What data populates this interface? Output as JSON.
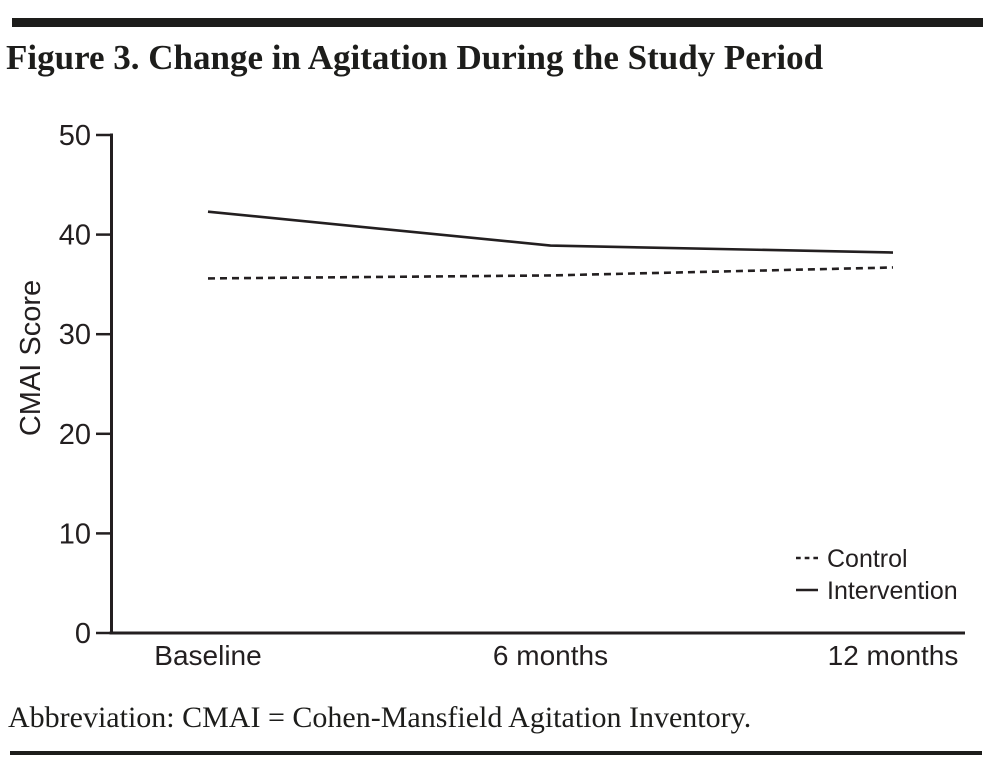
{
  "figure": {
    "title": "Figure 3. Change in Agitation During the Study Period",
    "abbreviation": "Abbreviation: CMAI = Cohen-Mansfield Agitation Inventory."
  },
  "colors": {
    "ink": "#231f20",
    "background": "#ffffff"
  },
  "chart_data": {
    "type": "line",
    "title": "Figure 3. Change in Agitation During the Study Period",
    "categories": [
      "Baseline",
      "6 months",
      "12 months"
    ],
    "series": [
      {
        "name": "Control",
        "line_style": "dashed",
        "values": [
          35.6,
          35.9,
          36.7
        ]
      },
      {
        "name": "Intervention",
        "line_style": "solid",
        "values": [
          42.3,
          38.9,
          38.2
        ]
      }
    ],
    "xlabel": "",
    "ylabel": "CMAI Score",
    "ylim": [
      0,
      50
    ],
    "yticks": [
      0,
      10,
      20,
      30,
      40,
      50
    ],
    "grid": false,
    "legend_position": "bottom-right"
  }
}
